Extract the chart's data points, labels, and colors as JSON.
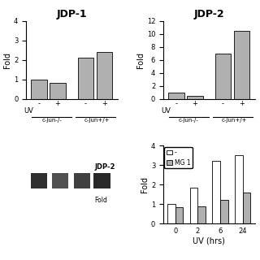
{
  "jdp1_title": "JDP-1",
  "jdp1_uv": [
    "-",
    "+",
    "-",
    "+"
  ],
  "jdp1_values": [
    1.0,
    0.8,
    2.1,
    2.4
  ],
  "jdp1_ylim": [
    0,
    4
  ],
  "jdp1_yticks": [
    0,
    1,
    2,
    3,
    4
  ],
  "jdp1_ylabel": "Fold",
  "jdp1_cat1": "c-jun-/-",
  "jdp1_cat2": "c-jun+/+",
  "jdp2_title": "JDP-2",
  "jdp2_uv": [
    "-",
    "+",
    "-",
    "+"
  ],
  "jdp2_values": [
    1.0,
    0.4,
    7.0,
    10.5
  ],
  "jdp2_ylim": [
    0,
    12
  ],
  "jdp2_yticks": [
    0,
    2,
    4,
    6,
    8,
    10,
    12
  ],
  "jdp2_ylabel": "Fold",
  "jdp2_cat1": "c-jun-/-",
  "jdp2_cat2": "c-jun+/+",
  "mg132_uv_labels": [
    "0",
    "2",
    "6",
    "24"
  ],
  "mg132_no_values": [
    1.0,
    1.85,
    3.2,
    3.5
  ],
  "mg132_yes_values": [
    0.85,
    0.9,
    1.2,
    1.6
  ],
  "mg132_ylim": [
    0,
    4
  ],
  "mg132_yticks": [
    0,
    1,
    2,
    3,
    4
  ],
  "mg132_ylabel": "Fold",
  "mg132_xlabel": "UV (hrs)",
  "legend_label_no": "-",
  "legend_label_yes": "MG 1",
  "bar_color_gray": "#b0b0b0",
  "bar_color_white": "#ffffff",
  "bar_edge_color": "#000000",
  "background_color": "#ffffff",
  "font_size": 7,
  "title_font_size": 9
}
